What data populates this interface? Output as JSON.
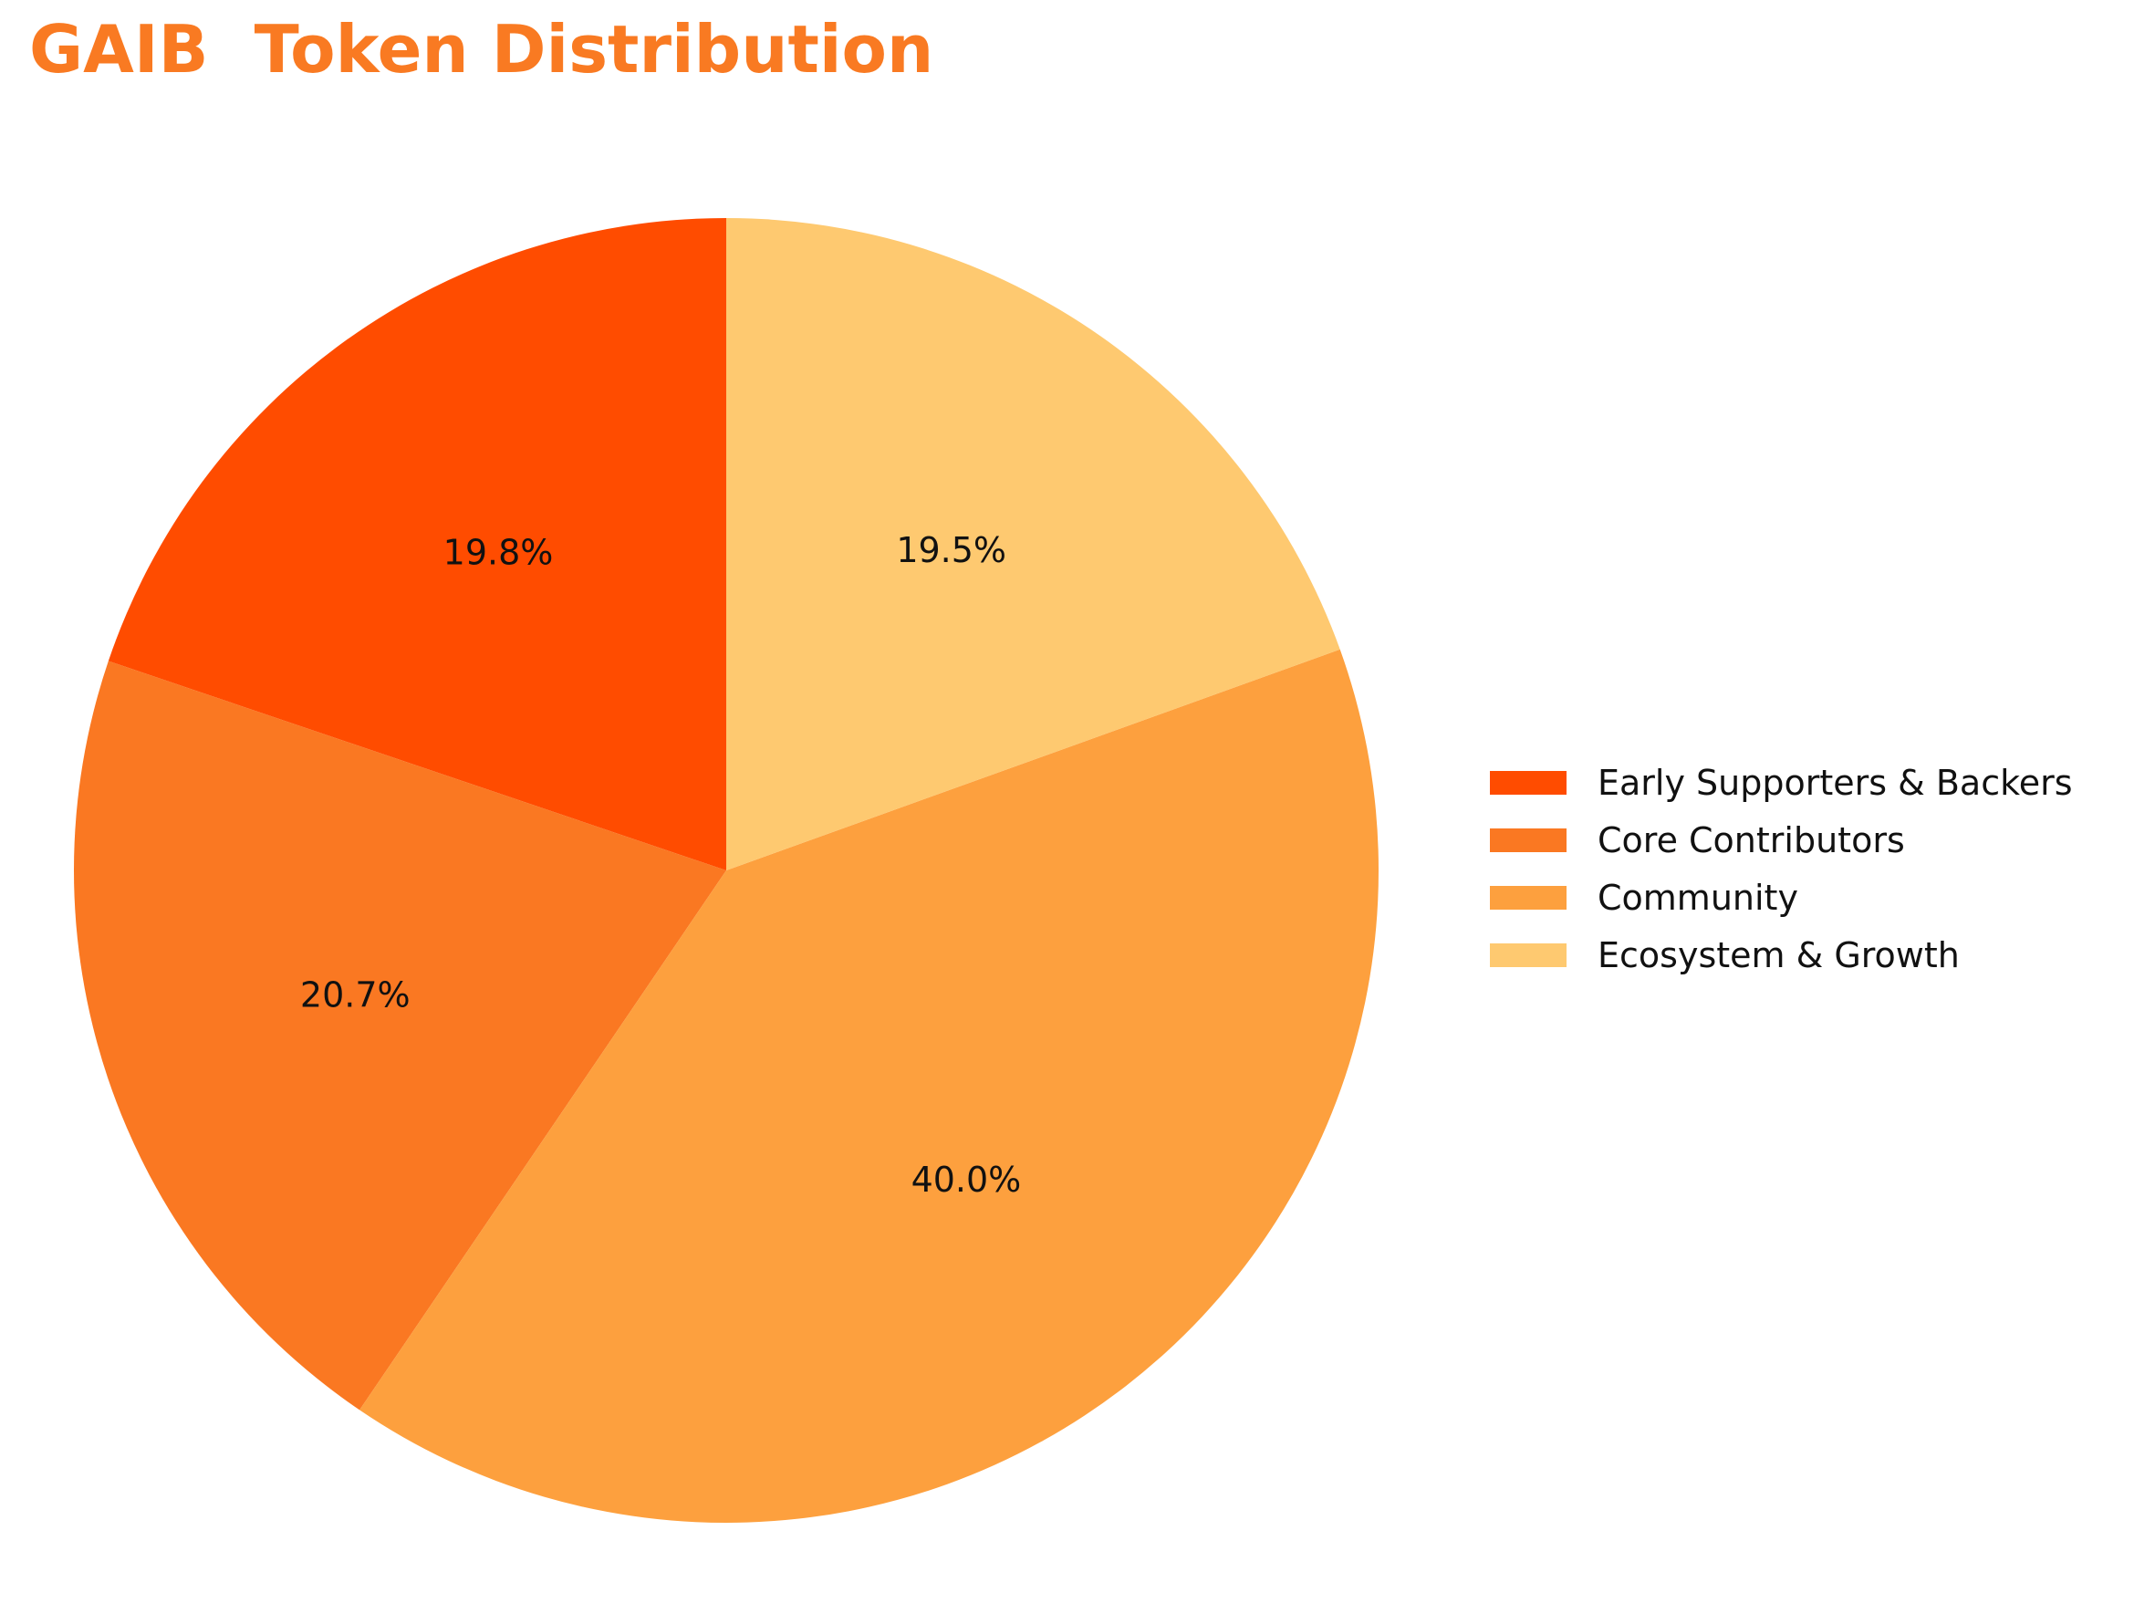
{
  "chart_data": {
    "type": "pie",
    "title": "GAIB  Token Distribution",
    "start_angle_deg": 90,
    "direction": "counterclockwise",
    "legend_position": "right",
    "slices": [
      {
        "label": "Early Supporters & Backers",
        "value": 19.8,
        "display": "19.8%",
        "color": "#FF4C00"
      },
      {
        "label": "Core Contributors",
        "value": 20.7,
        "display": "20.7%",
        "color": "#FA7822"
      },
      {
        "label": "Community",
        "value": 40.0,
        "display": "40.0%",
        "color": "#FDA03E"
      },
      {
        "label": "Ecosystem & Growth",
        "value": 19.5,
        "display": "19.5%",
        "color": "#FEC970"
      }
    ]
  }
}
